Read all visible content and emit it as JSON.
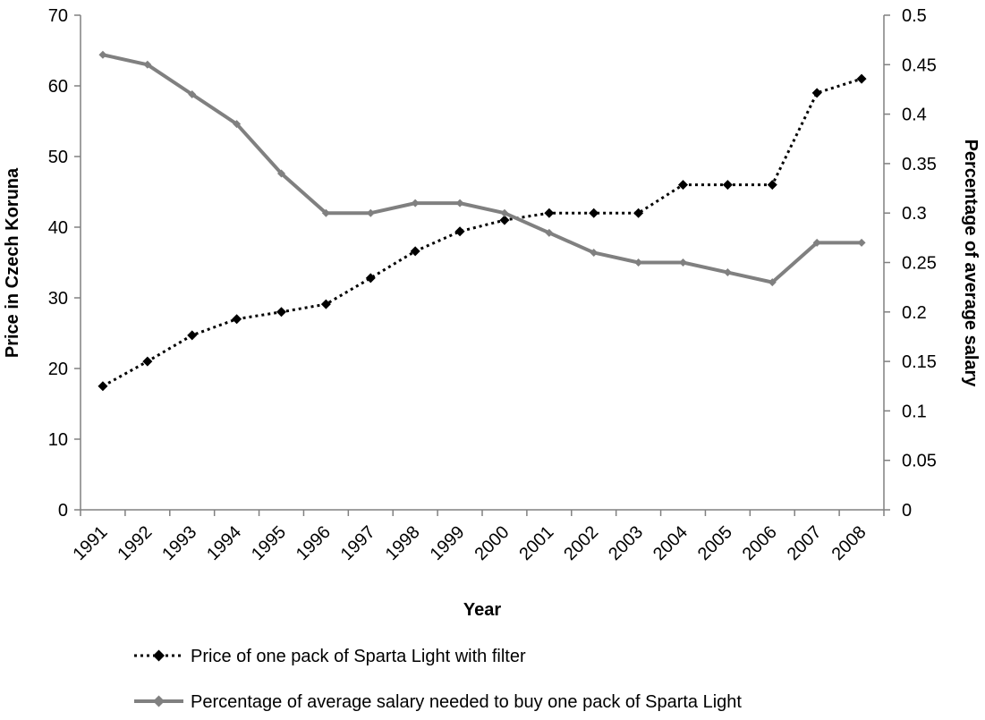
{
  "chart_data": {
    "type": "line",
    "categories": [
      "1991",
      "1992",
      "1993",
      "1994",
      "1995",
      "1996",
      "1997",
      "1998",
      "1999",
      "2000",
      "2001",
      "2002",
      "2003",
      "2004",
      "2005",
      "2006",
      "2007",
      "2008"
    ],
    "xlabel": "Year",
    "ylabel_left": "Price in Czech Koruna",
    "ylabel_right": "Percentage of average salary",
    "ylim_left": [
      0,
      70
    ],
    "ylim_right": [
      0,
      0.5
    ],
    "yticks_left": [
      "0",
      "10",
      "20",
      "30",
      "40",
      "50",
      "60",
      "70"
    ],
    "yticks_right": [
      "0",
      "0.05",
      "0.1",
      "0.15",
      "0.2",
      "0.25",
      "0.3",
      "0.35",
      "0.4",
      "0.45",
      "0.5"
    ],
    "grid": false,
    "legend_position": "bottom",
    "series": [
      {
        "name": "Price of one pack of Sparta Light with filter",
        "axis": "left",
        "style": "dotted",
        "marker": "diamond",
        "color": "#000000",
        "values": [
          17.5,
          21,
          24.7,
          27,
          28,
          29.1,
          32.8,
          36.6,
          39.4,
          41,
          42,
          42,
          42,
          46,
          46,
          46,
          59,
          61
        ]
      },
      {
        "name": "Percentage of average salary needed to buy one pack of Sparta Light",
        "axis": "right",
        "style": "solid",
        "marker": "diamond",
        "color": "#808080",
        "values": [
          0.46,
          0.45,
          0.42,
          0.39,
          0.34,
          0.3,
          0.3,
          0.31,
          0.31,
          0.3,
          0.28,
          0.26,
          0.25,
          0.25,
          0.24,
          0.23,
          0.27,
          0.27
        ]
      }
    ]
  }
}
